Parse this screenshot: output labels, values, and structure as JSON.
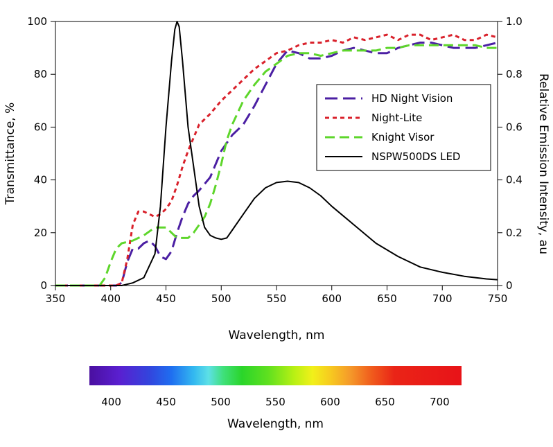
{
  "chart_data": {
    "type": "line",
    "xlabel": "Wavelength, nm",
    "ylabel": "Transmittance, %",
    "y2label": "Relative Emission Intensity, au",
    "xlim": [
      350,
      750
    ],
    "ylim": [
      0,
      100
    ],
    "y2lim": [
      0,
      1.0
    ],
    "x_ticks": [
      350,
      400,
      450,
      500,
      550,
      600,
      650,
      700,
      750
    ],
    "y_ticks": [
      0,
      20,
      40,
      60,
      80,
      100
    ],
    "y2_ticks": [
      "0",
      "0.2",
      "0.4",
      "0.6",
      "0.8",
      "1.0"
    ],
    "grid": false,
    "legend_position": "right",
    "series": [
      {
        "name": "HD Night Vision",
        "axis": "left",
        "color": "#4b1fa3",
        "dash": "long-dash",
        "points": [
          [
            350,
            0
          ],
          [
            405,
            0
          ],
          [
            410,
            1
          ],
          [
            415,
            9
          ],
          [
            420,
            14
          ],
          [
            425,
            14
          ],
          [
            430,
            16
          ],
          [
            435,
            17
          ],
          [
            440,
            15
          ],
          [
            445,
            11
          ],
          [
            450,
            10
          ],
          [
            455,
            13
          ],
          [
            460,
            20
          ],
          [
            465,
            26
          ],
          [
            470,
            31
          ],
          [
            475,
            34
          ],
          [
            480,
            36
          ],
          [
            490,
            41
          ],
          [
            500,
            51
          ],
          [
            510,
            57
          ],
          [
            520,
            61
          ],
          [
            530,
            68
          ],
          [
            540,
            76
          ],
          [
            550,
            84
          ],
          [
            560,
            89
          ],
          [
            570,
            88
          ],
          [
            580,
            86
          ],
          [
            590,
            86
          ],
          [
            600,
            87
          ],
          [
            610,
            89
          ],
          [
            620,
            90
          ],
          [
            630,
            89
          ],
          [
            640,
            88
          ],
          [
            650,
            88
          ],
          [
            660,
            90
          ],
          [
            670,
            91
          ],
          [
            680,
            92
          ],
          [
            690,
            92
          ],
          [
            700,
            91
          ],
          [
            710,
            90
          ],
          [
            720,
            90
          ],
          [
            730,
            90
          ],
          [
            740,
            91
          ],
          [
            750,
            92
          ]
        ]
      },
      {
        "name": "Night-Lite",
        "axis": "left",
        "color": "#d9212b",
        "dash": "short-dash",
        "points": [
          [
            350,
            0
          ],
          [
            405,
            0
          ],
          [
            410,
            1
          ],
          [
            415,
            10
          ],
          [
            420,
            23
          ],
          [
            425,
            28
          ],
          [
            430,
            28
          ],
          [
            435,
            27
          ],
          [
            440,
            26
          ],
          [
            445,
            27
          ],
          [
            450,
            29
          ],
          [
            455,
            32
          ],
          [
            460,
            38
          ],
          [
            465,
            45
          ],
          [
            470,
            51
          ],
          [
            475,
            56
          ],
          [
            480,
            61
          ],
          [
            490,
            65
          ],
          [
            500,
            70
          ],
          [
            510,
            74
          ],
          [
            520,
            78
          ],
          [
            530,
            82
          ],
          [
            540,
            85
          ],
          [
            550,
            88
          ],
          [
            560,
            89
          ],
          [
            570,
            91
          ],
          [
            580,
            92
          ],
          [
            590,
            92
          ],
          [
            600,
            93
          ],
          [
            610,
            92
          ],
          [
            620,
            94
          ],
          [
            630,
            93
          ],
          [
            640,
            94
          ],
          [
            650,
            95
          ],
          [
            660,
            93
          ],
          [
            670,
            95
          ],
          [
            680,
            95
          ],
          [
            690,
            93
          ],
          [
            700,
            94
          ],
          [
            710,
            95
          ],
          [
            720,
            93
          ],
          [
            730,
            93
          ],
          [
            740,
            95
          ],
          [
            750,
            94
          ]
        ]
      },
      {
        "name": "Knight Visor",
        "axis": "left",
        "color": "#5ed62b",
        "dash": "dash",
        "points": [
          [
            350,
            0
          ],
          [
            390,
            0
          ],
          [
            395,
            3
          ],
          [
            400,
            9
          ],
          [
            405,
            14
          ],
          [
            410,
            16
          ],
          [
            420,
            17
          ],
          [
            430,
            19
          ],
          [
            440,
            22
          ],
          [
            450,
            22
          ],
          [
            455,
            20
          ],
          [
            460,
            18
          ],
          [
            465,
            18
          ],
          [
            470,
            18
          ],
          [
            475,
            20
          ],
          [
            480,
            23
          ],
          [
            485,
            26
          ],
          [
            490,
            31
          ],
          [
            495,
            38
          ],
          [
            500,
            46
          ],
          [
            505,
            55
          ],
          [
            510,
            61
          ],
          [
            520,
            70
          ],
          [
            530,
            76
          ],
          [
            540,
            81
          ],
          [
            550,
            84
          ],
          [
            560,
            87
          ],
          [
            570,
            88
          ],
          [
            580,
            88
          ],
          [
            590,
            87
          ],
          [
            600,
            88
          ],
          [
            610,
            89
          ],
          [
            620,
            89
          ],
          [
            640,
            89
          ],
          [
            650,
            90
          ],
          [
            660,
            90
          ],
          [
            670,
            91
          ],
          [
            680,
            91
          ],
          [
            690,
            91
          ],
          [
            700,
            91
          ],
          [
            710,
            91
          ],
          [
            720,
            91
          ],
          [
            730,
            91
          ],
          [
            740,
            90
          ],
          [
            750,
            90
          ]
        ]
      },
      {
        "name": "NSPW500DS LED",
        "axis": "right",
        "color": "#000000",
        "dash": "solid",
        "points": [
          [
            350,
            0
          ],
          [
            410,
            0
          ],
          [
            420,
            0.01
          ],
          [
            430,
            0.03
          ],
          [
            440,
            0.12
          ],
          [
            445,
            0.3
          ],
          [
            450,
            0.6
          ],
          [
            455,
            0.85
          ],
          [
            458,
            0.97
          ],
          [
            460,
            1.0
          ],
          [
            462,
            0.98
          ],
          [
            465,
            0.85
          ],
          [
            470,
            0.6
          ],
          [
            475,
            0.45
          ],
          [
            480,
            0.3
          ],
          [
            485,
            0.22
          ],
          [
            490,
            0.19
          ],
          [
            495,
            0.18
          ],
          [
            500,
            0.175
          ],
          [
            505,
            0.18
          ],
          [
            510,
            0.21
          ],
          [
            520,
            0.27
          ],
          [
            530,
            0.33
          ],
          [
            540,
            0.37
          ],
          [
            550,
            0.39
          ],
          [
            560,
            0.395
          ],
          [
            570,
            0.39
          ],
          [
            580,
            0.37
          ],
          [
            590,
            0.34
          ],
          [
            600,
            0.3
          ],
          [
            620,
            0.23
          ],
          [
            640,
            0.16
          ],
          [
            660,
            0.11
          ],
          [
            680,
            0.07
          ],
          [
            700,
            0.05
          ],
          [
            720,
            0.035
          ],
          [
            740,
            0.025
          ],
          [
            750,
            0.022
          ]
        ]
      }
    ]
  },
  "spectrum_bar": {
    "xlabel": "Wavelength, nm",
    "range": [
      380,
      720
    ],
    "ticks": [
      400,
      450,
      500,
      550,
      600,
      650,
      700
    ]
  }
}
